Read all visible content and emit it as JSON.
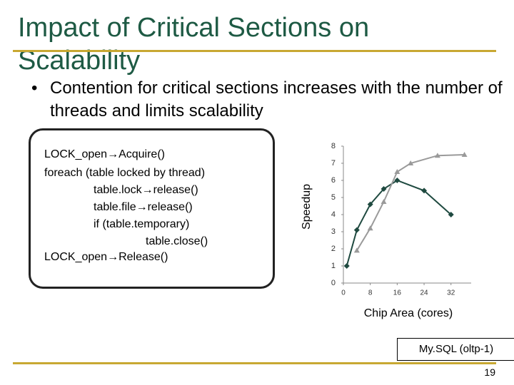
{
  "slide": {
    "title": "Impact of Critical Sections on Scalability",
    "bullet": "Contention for critical sections increases with the number of threads and limits scalability",
    "code": [
      "LOCK_open→Acquire()",
      "foreach (table locked by thread)",
      "table.lock→release()",
      "table.file→release()",
      "if (table.temporary)",
      "table.close()",
      "LOCK_open→Release()"
    ],
    "page_number": "19"
  },
  "chart_data": {
    "type": "line",
    "x_label": "Chip Area (cores)",
    "y_label": "Speedup",
    "annotation": "My.SQL (oltp-1)",
    "series": [
      {
        "color": "#1f4a40",
        "marker": "diamond",
        "x": [
          1,
          4,
          8,
          12,
          16,
          24,
          32
        ],
        "values": [
          1,
          3.1,
          4.6,
          5.5,
          6.0,
          5.4,
          4.0
        ]
      },
      {
        "color": "#9a9a9a",
        "marker": "triangle",
        "x": [
          4,
          8,
          12,
          16,
          20,
          28,
          36
        ],
        "values": [
          1.9,
          3.2,
          4.75,
          6.5,
          7.0,
          7.45,
          7.5
        ]
      }
    ],
    "xlim": [
      0,
      38
    ],
    "xticks": [
      0,
      8,
      16,
      24,
      32
    ],
    "ylim": [
      0,
      8
    ],
    "yticks": [
      0,
      1,
      2,
      3,
      4,
      5,
      6,
      7,
      8
    ]
  }
}
